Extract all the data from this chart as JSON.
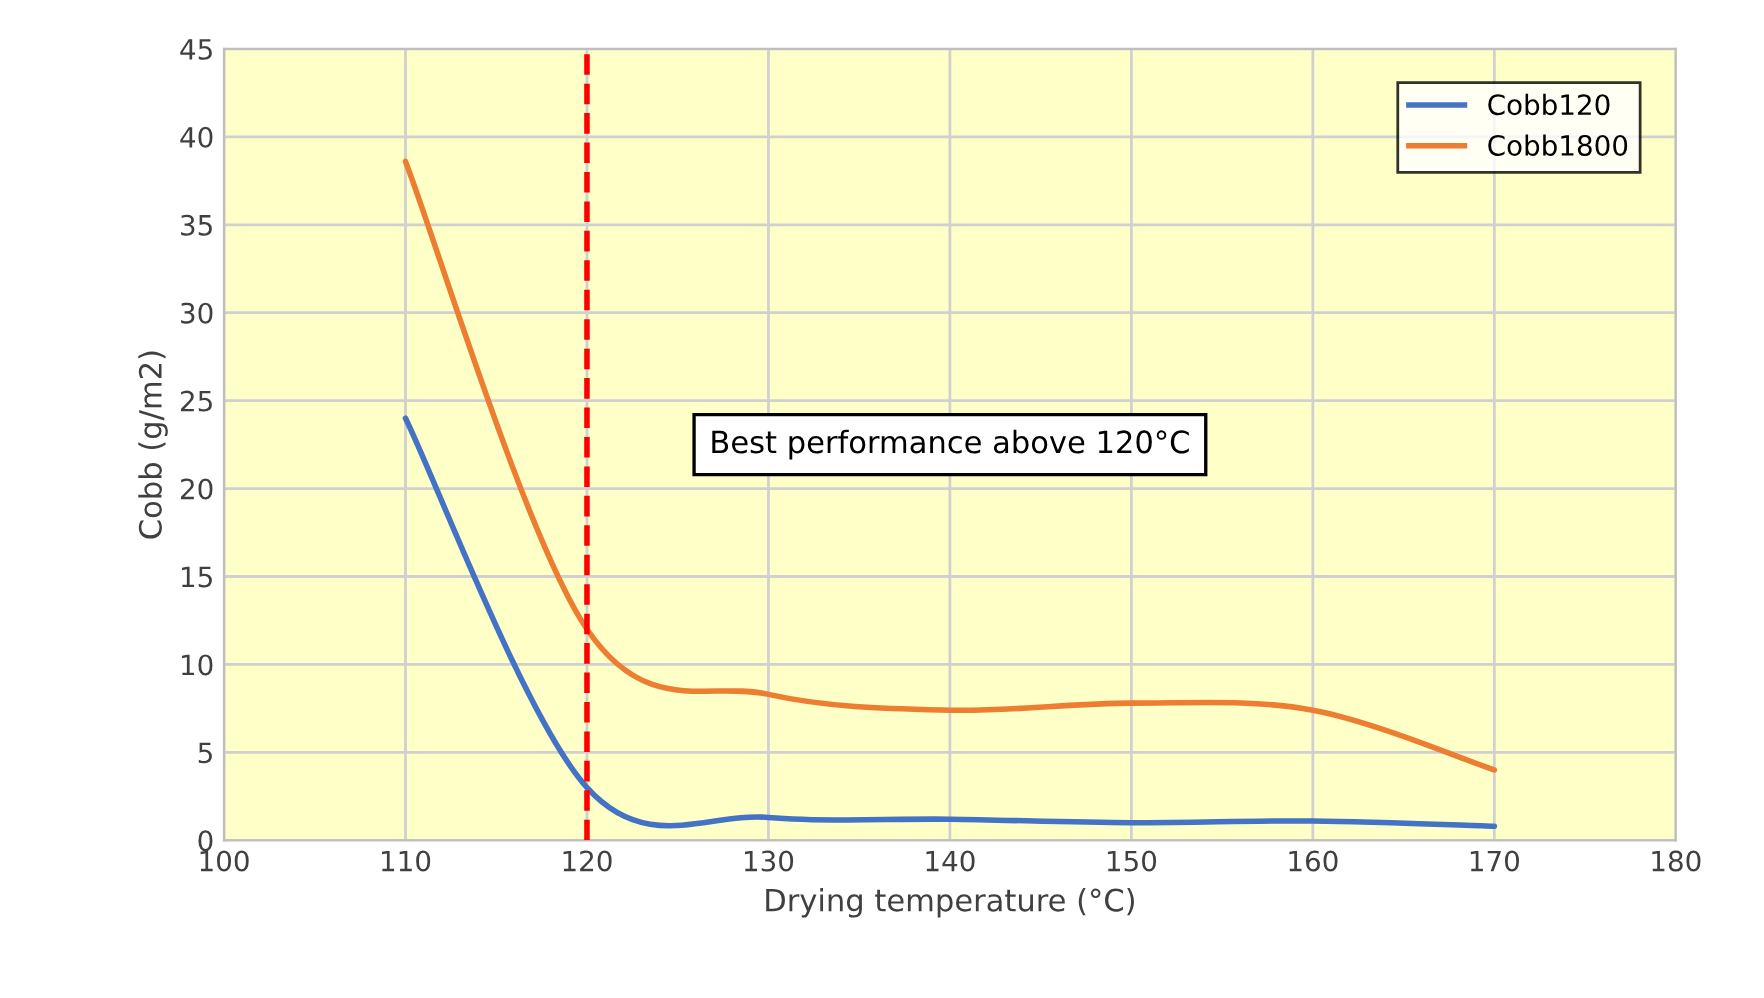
{
  "chart_data": {
    "type": "line",
    "xlabel": "Drying temperature (°C)",
    "ylabel": "Cobb (g/m2)",
    "x": [
      110,
      120,
      130,
      140,
      150,
      160,
      170
    ],
    "series": [
      {
        "name": "Cobb120",
        "color": "#4472c4",
        "values": [
          24,
          3,
          1.3,
          1.2,
          1.0,
          1.1,
          0.8
        ]
      },
      {
        "name": "Cobb1800",
        "color": "#ed7d31",
        "values": [
          38.6,
          12,
          8.3,
          7.4,
          7.8,
          7.4,
          4.0
        ]
      }
    ],
    "xlim": [
      100,
      180
    ],
    "xticks": [
      100,
      110,
      120,
      130,
      140,
      150,
      160,
      170,
      180
    ],
    "ylim": [
      0,
      45
    ],
    "yticks": [
      0,
      5,
      10,
      15,
      20,
      25,
      30,
      35,
      40,
      45
    ],
    "ref_lines": [
      {
        "axis": "x",
        "value": 120,
        "color": "#ff0000",
        "line_style": "dashed"
      }
    ],
    "annotations": [
      "Best performance above 120°C"
    ],
    "grid": true,
    "legend": "top right",
    "marker": "none",
    "line_style": "solid"
  }
}
